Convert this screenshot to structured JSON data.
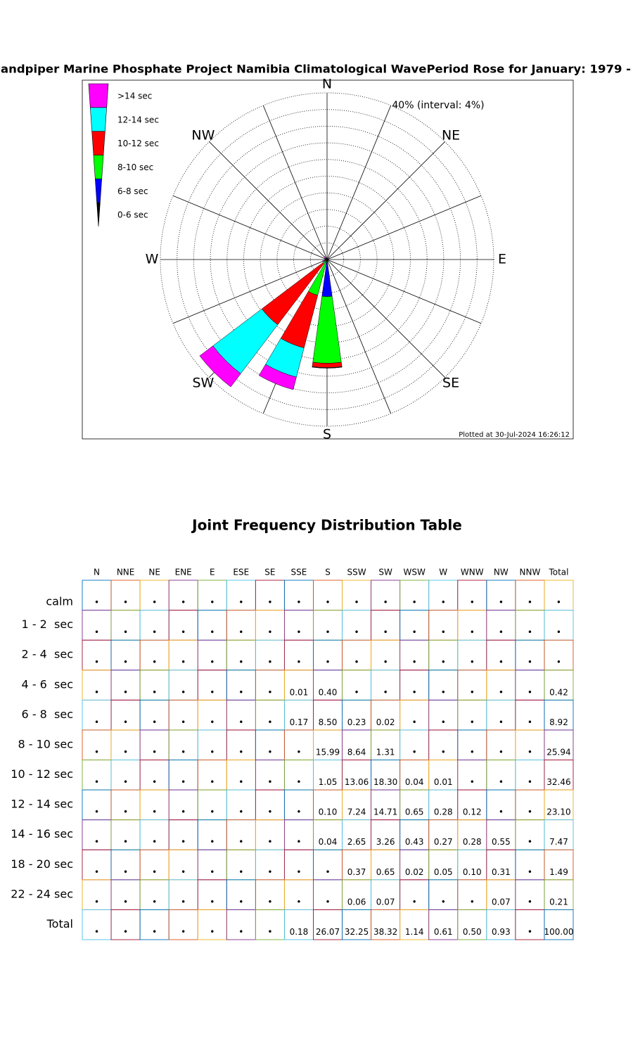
{
  "chart_data": {
    "type": "rose",
    "title": "andpiper Marine Phosphate Project Namibia Climatological WavePeriod Rose for January: 1979 -",
    "scale_label": "40% (interval: 4%)",
    "footnote": "Plotted at 30-Jul-2024 16:26:12",
    "categories": [
      "N",
      null,
      "NE",
      null,
      "E",
      null,
      "SE",
      null,
      "S",
      null,
      "SW",
      null,
      "W",
      null,
      "NW",
      null
    ],
    "rlim": [
      0,
      40
    ],
    "rticks": [
      4,
      8,
      12,
      16,
      20,
      24,
      28,
      32,
      36,
      40
    ],
    "series": [
      {
        "name": "0-6 sec",
        "color": "#000000",
        "values": [
          0,
          0,
          0,
          0,
          0,
          0,
          0,
          0.01,
          0.4,
          0,
          0,
          0,
          0,
          0,
          0,
          0
        ]
      },
      {
        "name": "6-8 sec",
        "color": "#0000ff",
        "values": [
          0,
          0,
          0,
          0,
          0,
          0,
          0,
          0.17,
          8.5,
          0.23,
          0.02,
          0,
          0,
          0,
          0,
          0
        ]
      },
      {
        "name": "8-10 sec",
        "color": "#00ff00",
        "values": [
          0,
          0,
          0,
          0,
          0,
          0,
          0,
          0,
          15.99,
          8.64,
          1.31,
          0,
          0,
          0,
          0,
          0
        ]
      },
      {
        "name": "10-12 sec",
        "color": "#ff0000",
        "values": [
          0,
          0,
          0,
          0,
          0,
          0,
          0,
          0,
          1.05,
          13.06,
          18.3,
          0.04,
          0.01,
          0,
          0,
          0
        ]
      },
      {
        "name": "12-14 sec",
        "color": "#00ffff",
        "values": [
          0,
          0,
          0,
          0,
          0,
          0,
          0,
          0,
          0.1,
          7.24,
          14.71,
          0.65,
          0.28,
          0.12,
          0,
          0
        ]
      },
      {
        "name": ">14 sec",
        "color": "#ff00ff",
        "values": [
          0,
          0,
          0,
          0,
          0,
          0,
          0,
          0,
          0.04,
          3.08,
          3.98,
          0.45,
          0.32,
          0.38,
          0.93,
          0
        ]
      }
    ]
  },
  "table": {
    "title": "Joint Frequency Distribution Table",
    "columns": [
      "N",
      "NNE",
      "NE",
      "ENE",
      "E",
      "ESE",
      "SE",
      "SSE",
      "S",
      "SSW",
      "SW",
      "WSW",
      "W",
      "WNW",
      "NW",
      "NNW",
      "Total"
    ],
    "rows": [
      {
        "label": "calm",
        "cells": [
          "•",
          "•",
          "•",
          "•",
          "•",
          "•",
          "•",
          "•",
          "•",
          "•",
          "•",
          "•",
          "•",
          "•",
          "•",
          "•",
          "•"
        ]
      },
      {
        "label": "1 - 2  sec",
        "cells": [
          "•",
          "•",
          "•",
          "•",
          "•",
          "•",
          "•",
          "•",
          "•",
          "•",
          "•",
          "•",
          "•",
          "•",
          "•",
          "•",
          "•"
        ]
      },
      {
        "label": "2 - 4  sec",
        "cells": [
          "•",
          "•",
          "•",
          "•",
          "•",
          "•",
          "•",
          "•",
          "•",
          "•",
          "•",
          "•",
          "•",
          "•",
          "•",
          "•",
          "•"
        ]
      },
      {
        "label": "4 - 6  sec",
        "cells": [
          "•",
          "•",
          "•",
          "•",
          "•",
          "•",
          "•",
          "0.01",
          "0.40",
          "•",
          "•",
          "•",
          "•",
          "•",
          "•",
          "•",
          "0.42"
        ]
      },
      {
        "label": "6 - 8  sec",
        "cells": [
          "•",
          "•",
          "•",
          "•",
          "•",
          "•",
          "•",
          "0.17",
          "8.50",
          "0.23",
          "0.02",
          "•",
          "•",
          "•",
          "•",
          "•",
          "8.92"
        ]
      },
      {
        "label": "8 - 10 sec",
        "cells": [
          "•",
          "•",
          "•",
          "•",
          "•",
          "•",
          "•",
          "•",
          "15.99",
          "8.64",
          "1.31",
          "•",
          "•",
          "•",
          "•",
          "•",
          "25.94"
        ]
      },
      {
        "label": "10 - 12 sec",
        "cells": [
          "•",
          "•",
          "•",
          "•",
          "•",
          "•",
          "•",
          "•",
          "1.05",
          "13.06",
          "18.30",
          "0.04",
          "0.01",
          "•",
          "•",
          "•",
          "32.46"
        ]
      },
      {
        "label": "12 - 14 sec",
        "cells": [
          "•",
          "•",
          "•",
          "•",
          "•",
          "•",
          "•",
          "•",
          "0.10",
          "7.24",
          "14.71",
          "0.65",
          "0.28",
          "0.12",
          "•",
          "•",
          "23.10"
        ]
      },
      {
        "label": "14 - 16 sec",
        "cells": [
          "•",
          "•",
          "•",
          "•",
          "•",
          "•",
          "•",
          "•",
          "0.04",
          "2.65",
          "3.26",
          "0.43",
          "0.27",
          "0.28",
          "0.55",
          "•",
          "7.47"
        ]
      },
      {
        "label": "18 - 20 sec",
        "cells": [
          "•",
          "•",
          "•",
          "•",
          "•",
          "•",
          "•",
          "•",
          "•",
          "0.37",
          "0.65",
          "0.02",
          "0.05",
          "0.10",
          "0.31",
          "•",
          "1.49"
        ]
      },
      {
        "label": "22 - 24 sec",
        "cells": [
          "•",
          "•",
          "•",
          "•",
          "•",
          "•",
          "•",
          "•",
          "•",
          "0.06",
          "0.07",
          "•",
          "•",
          "•",
          "0.07",
          "•",
          "0.21"
        ]
      },
      {
        "label": "Total",
        "cells": [
          "•",
          "•",
          "•",
          "•",
          "•",
          "•",
          "•",
          "0.18",
          "26.07",
          "32.25",
          "38.32",
          "1.14",
          "0.61",
          "0.50",
          "0.93",
          "•",
          "100.00"
        ]
      }
    ]
  }
}
